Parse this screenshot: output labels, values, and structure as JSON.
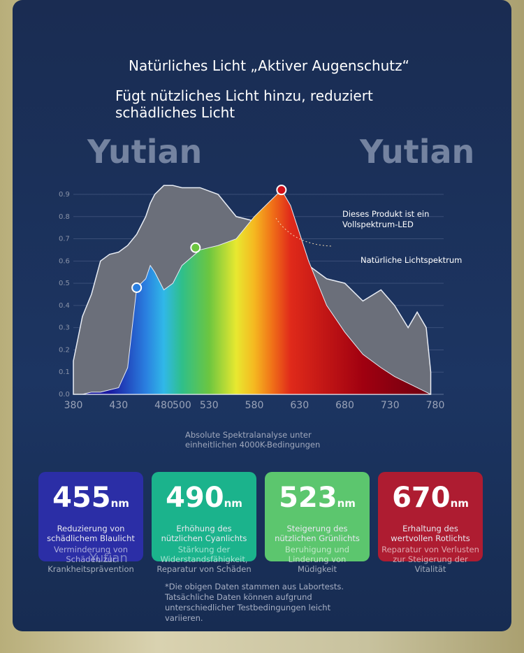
{
  "header": {
    "title": "Natürliches Licht „Aktiver Augenschutz“",
    "subtitle": "Fügt nützliches Licht hinzu, reduziert schädliches Licht"
  },
  "watermarks": [
    "Yutian",
    "Yutian",
    "Yutian"
  ],
  "chart_data": {
    "type": "area",
    "x": [
      380,
      390,
      400,
      410,
      420,
      430,
      440,
      450,
      460,
      465,
      470,
      480,
      490,
      500,
      520,
      540,
      560,
      580,
      600,
      610,
      620,
      640,
      660,
      680,
      700,
      720,
      735,
      750,
      760,
      770,
      775
    ],
    "series": [
      {
        "name": "Natürliche Lichtspektrum",
        "color": "#6b6f7a",
        "values": [
          0.15,
          0.35,
          0.45,
          0.6,
          0.63,
          0.64,
          0.67,
          0.72,
          0.8,
          0.86,
          0.9,
          0.94,
          0.94,
          0.93,
          0.93,
          0.9,
          0.8,
          0.78,
          0.76,
          0.72,
          0.66,
          0.58,
          0.52,
          0.5,
          0.42,
          0.47,
          0.4,
          0.3,
          0.37,
          0.3,
          0.1
        ]
      },
      {
        "name": "Dieses Produkt ist ein Vollspektrum-LED",
        "color": "#e8e830",
        "values": [
          0.0,
          0.0,
          0.01,
          0.01,
          0.02,
          0.03,
          0.12,
          0.48,
          0.52,
          0.58,
          0.55,
          0.47,
          0.5,
          0.58,
          0.65,
          0.67,
          0.7,
          0.8,
          0.88,
          0.92,
          0.85,
          0.6,
          0.4,
          0.28,
          0.18,
          0.12,
          0.08,
          0.05,
          0.03,
          0.01,
          0.0
        ]
      }
    ],
    "markers": [
      {
        "x": 450,
        "y": 0.48,
        "color": "#2a7fe0"
      },
      {
        "x": 515,
        "y": 0.66,
        "color": "#6cc640"
      },
      {
        "x": 610,
        "y": 0.92,
        "color": "#d0101a"
      }
    ],
    "xlim": [
      380,
      780
    ],
    "ylim": [
      0,
      0.9
    ],
    "xticks": [
      380,
      430,
      480,
      500,
      530,
      580,
      630,
      680,
      730,
      780
    ],
    "yticks": [
      {
        "value": 0,
        "label": "0.0"
      },
      0.1,
      0.2,
      0.3,
      0.4,
      0.5,
      0.6,
      0.7,
      0.8,
      0.9
    ],
    "grid": true,
    "note": "Absolute Spektralanalyse unter einheitlichen 4000K-Bedingungen"
  },
  "cards": [
    {
      "value": 455,
      "unit": "nm",
      "color": "#2b2ea6",
      "line1": "Reduzierung von schädlichem Blaulicht",
      "line2": "Verminderung von Schäden zur Krankheitsprävention"
    },
    {
      "value": 490,
      "unit": "nm",
      "color": "#1bb38c",
      "line1": "Erhöhung des nützlichen Cyanlichts",
      "line2": "Stärkung der Widerstandsfähigkeit, Reparatur von Schäden"
    },
    {
      "value": 523,
      "unit": "nm",
      "color": "#5cc66e",
      "line1": "Steigerung des nützlichen Grünlichts",
      "line2": "Beruhigung und Linderung von Müdigkeit"
    },
    {
      "value": 670,
      "unit": "nm",
      "color": "#ae1c31",
      "line1": "Erhaltung des wertvollen Rotlichts",
      "line2": "Reparatur von Verlusten zur Steigerung der Vitalität"
    }
  ],
  "footnote": "*Die obigen Daten stammen aus Labortests. Tatsächliche Daten können aufgrund unterschiedlicher Testbedingungen leicht variieren."
}
